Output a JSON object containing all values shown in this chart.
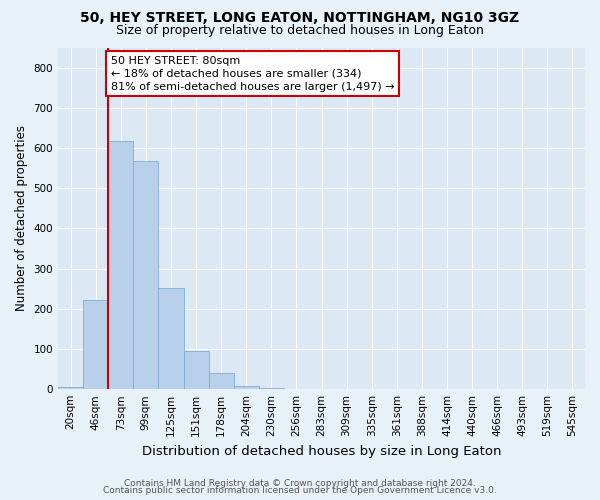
{
  "title": "50, HEY STREET, LONG EATON, NOTTINGHAM, NG10 3GZ",
  "subtitle": "Size of property relative to detached houses in Long Eaton",
  "xlabel": "Distribution of detached houses by size in Long Eaton",
  "ylabel": "Number of detached properties",
  "bin_labels": [
    "20sqm",
    "46sqm",
    "73sqm",
    "99sqm",
    "125sqm",
    "151sqm",
    "178sqm",
    "204sqm",
    "230sqm",
    "256sqm",
    "283sqm",
    "309sqm",
    "335sqm",
    "361sqm",
    "388sqm",
    "414sqm",
    "440sqm",
    "466sqm",
    "493sqm",
    "519sqm",
    "545sqm"
  ],
  "bar_values": [
    5,
    222,
    617,
    567,
    252,
    95,
    40,
    9,
    2,
    0,
    0,
    0,
    0,
    0,
    0,
    0,
    0,
    0,
    0,
    0,
    0
  ],
  "bar_color": "#b8d0ea",
  "bar_edge_color": "#7aafd4",
  "vline_color": "#cc0000",
  "annotation_text": "50 HEY STREET: 80sqm\n← 18% of detached houses are smaller (334)\n81% of semi-detached houses are larger (1,497) →",
  "annotation_box_color": "#ffffff",
  "annotation_box_edge": "#cc0000",
  "ylim": [
    0,
    850
  ],
  "yticks": [
    0,
    100,
    200,
    300,
    400,
    500,
    600,
    700,
    800
  ],
  "footer_line1": "Contains HM Land Registry data © Crown copyright and database right 2024.",
  "footer_line2": "Contains public sector information licensed under the Open Government Licence v3.0.",
  "plot_bg_color": "#dde8f5",
  "fig_bg_color": "#e8f0f8",
  "title_fontsize": 10,
  "subtitle_fontsize": 9,
  "xlabel_fontsize": 9.5,
  "ylabel_fontsize": 8.5,
  "tick_fontsize": 7.5,
  "footer_fontsize": 6.5,
  "annotation_fontsize": 8
}
